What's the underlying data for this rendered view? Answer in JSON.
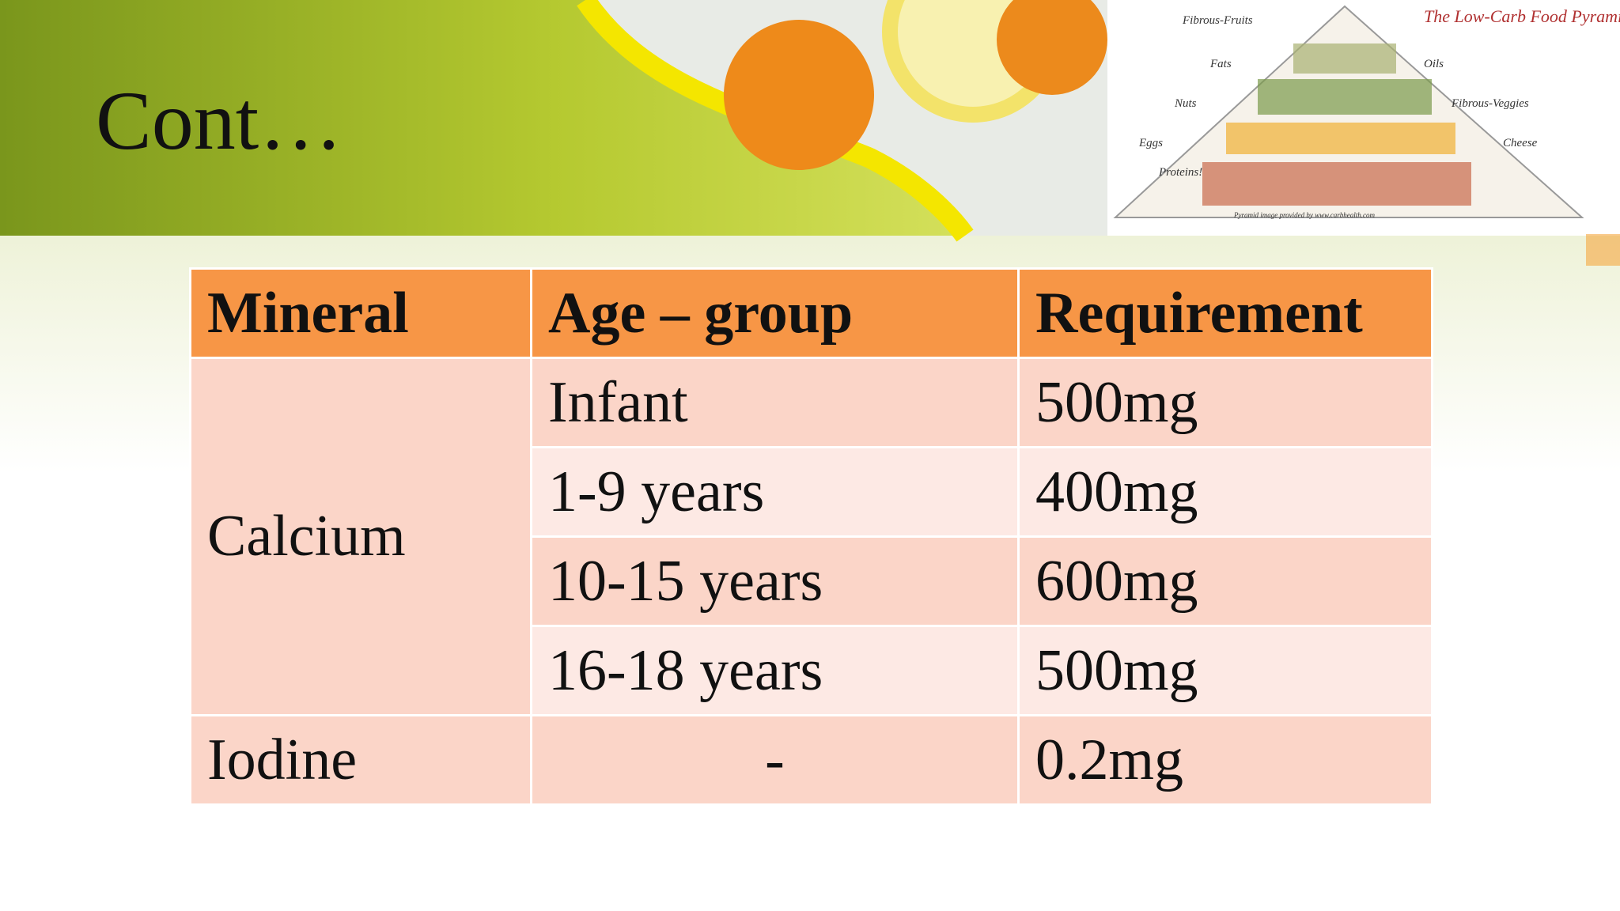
{
  "title": "Cont…",
  "image": {
    "title": "The Low-Carb Food Pyramid",
    "labels": [
      "Fibrous-Fruits",
      "Fats",
      "Oils",
      "Nuts",
      "Fibrous-Veggies",
      "Eggs",
      "Cheese",
      "Proteins!"
    ],
    "credit": "Pyramid image provided by www.carbhealth.com"
  },
  "table": {
    "header": [
      "Mineral",
      "Age – group",
      "Requirement"
    ],
    "groups": [
      {
        "mineral": "Calcium",
        "entries": [
          [
            "Infant",
            "500mg"
          ],
          [
            "1-9 years",
            "400mg"
          ],
          [
            "10-15 years",
            "600mg"
          ],
          [
            "16-18 years",
            "500mg"
          ]
        ]
      },
      {
        "mineral": "Iodine",
        "entries": [
          [
            "-",
            "0.2mg"
          ]
        ]
      }
    ]
  }
}
